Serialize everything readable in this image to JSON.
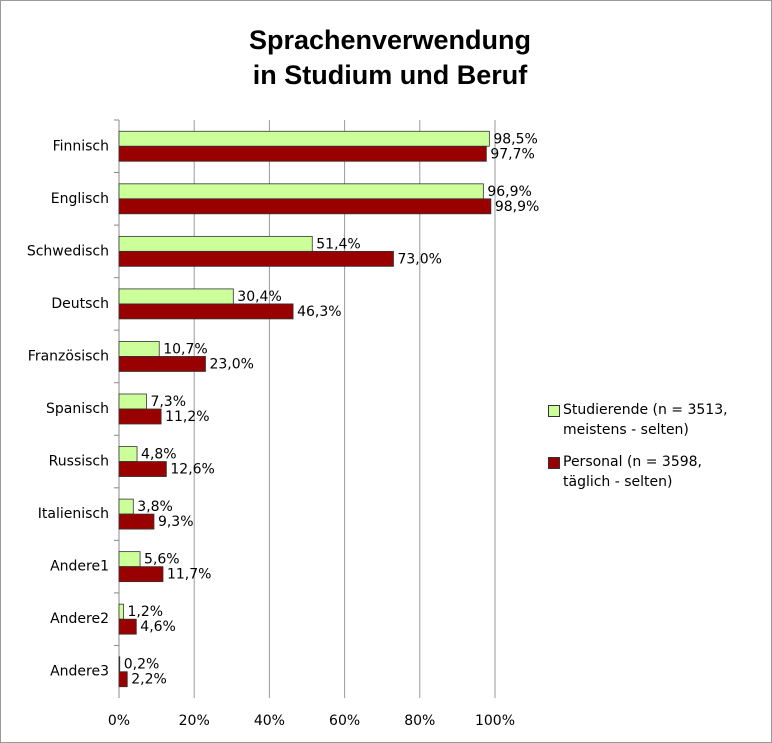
{
  "chart_data": {
    "type": "hbar",
    "title": [
      "Sprachenverwendung",
      "in Studium und Beruf"
    ],
    "categories": [
      "Finnisch",
      "Englisch",
      "Schwedisch",
      "Deutsch",
      "Französisch",
      "Spanisch",
      "Russisch",
      "Italienisch",
      "Andere1",
      "Andere2",
      "Andere3"
    ],
    "series": [
      {
        "name": "Studierende (n = 3513, meistens - selten)",
        "color": "#ccff99",
        "values": [
          98.5,
          96.9,
          51.4,
          30.4,
          10.7,
          7.3,
          4.8,
          3.8,
          5.6,
          1.2,
          0.2
        ],
        "value_labels": [
          "98,5%",
          "96,9%",
          "51,4%",
          "30,4%",
          "10,7%",
          "7,3%",
          "4,8%",
          "3,8%",
          "5,6%",
          "1,2%",
          "0,2%"
        ]
      },
      {
        "name": "Personal (n = 3598, täglich - selten)",
        "color": "#990000",
        "values": [
          97.7,
          98.9,
          73.0,
          46.3,
          23.0,
          11.2,
          12.6,
          9.3,
          11.7,
          4.6,
          2.2
        ],
        "value_labels": [
          "97,7%",
          "98,9%",
          "73,0%",
          "46,3%",
          "23,0%",
          "11,2%",
          "12,6%",
          "9,3%",
          "11,7%",
          "4,6%",
          "2,2%"
        ]
      }
    ],
    "xlim": [
      0,
      100
    ],
    "xticks": [
      {
        "value": 0,
        "label": "0%"
      },
      {
        "value": 20,
        "label": "20%"
      },
      {
        "value": 40,
        "label": "40%"
      },
      {
        "value": 60,
        "label": "60%"
      },
      {
        "value": 80,
        "label": "80%"
      },
      {
        "value": 100,
        "label": "100%"
      }
    ],
    "grid": true,
    "legend": "right"
  }
}
